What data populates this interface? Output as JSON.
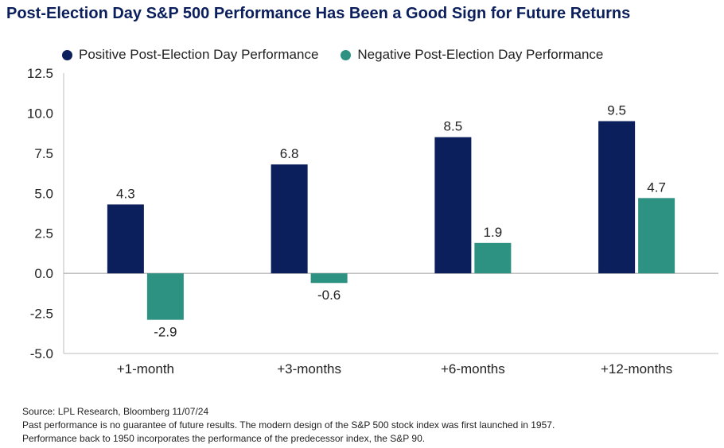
{
  "chart_data": {
    "type": "bar",
    "title": "Post-Election Day S&P 500 Performance Has Been a Good Sign for Future Returns",
    "categories": [
      "+1-month",
      "+3-months",
      "+6-months",
      "+12-months"
    ],
    "series": [
      {
        "name": "Positive Post-Election Day Performance",
        "color": "#0a1f5c",
        "values": [
          4.3,
          6.8,
          8.5,
          9.5
        ]
      },
      {
        "name": "Negative Post-Election Day Performance",
        "color": "#2e9283",
        "values": [
          -2.9,
          -0.6,
          1.9,
          4.7
        ]
      }
    ],
    "yticks": [
      "12.5",
      "10.0",
      "7.5",
      "5.0",
      "2.5",
      "0.0",
      "-2.5",
      "-5.0"
    ],
    "ylim": [
      -5.0,
      12.5
    ],
    "xlabel": "",
    "ylabel": "",
    "grid": false,
    "legend_position": "top"
  },
  "footnotes": {
    "source": "Source: LPL Research, Bloomberg 11/07/24",
    "line1": "Past performance is no guarantee of future results. The modern design of the S&P 500 stock index was first launched in 1957.",
    "line2": "Performance back to 1950 incorporates the performance of the predecessor index, the S&P 90."
  }
}
